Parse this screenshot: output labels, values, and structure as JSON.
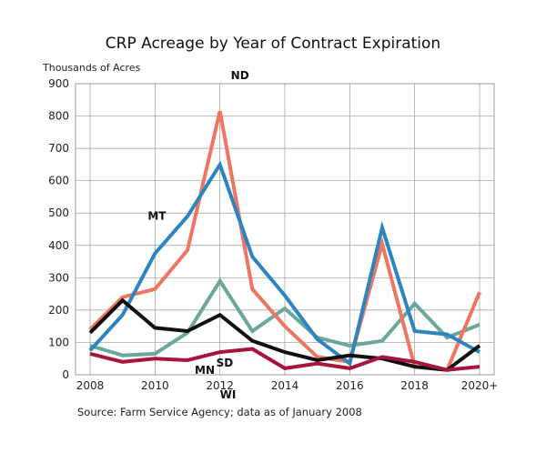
{
  "chart_data": {
    "type": "line",
    "title": "CRP Acreage by Year of Contract Expiration",
    "ylabel": "Thousands of Acres",
    "source": "Source: Farm Service Agency; data as of January 2008",
    "x": [
      2008,
      2009,
      2010,
      2011,
      2012,
      2013,
      2014,
      2015,
      2016,
      2017,
      2018,
      2019,
      2020
    ],
    "xticks": [
      "2008",
      "2010",
      "2012",
      "2014",
      "2016",
      "2018",
      "2020+"
    ],
    "yticks": [
      "0",
      "100",
      "200",
      "300",
      "400",
      "500",
      "600",
      "700",
      "800",
      "900"
    ],
    "ylim": [
      0,
      900
    ],
    "grid": true,
    "series": [
      {
        "name": "MN",
        "color": "#6aa69a",
        "values": [
          90,
          60,
          65,
          130,
          290,
          135,
          205,
          115,
          90,
          105,
          220,
          115,
          155
        ]
      },
      {
        "name": "ND",
        "color": "#ee7560",
        "values": [
          140,
          240,
          265,
          385,
          815,
          265,
          150,
          55,
          40,
          405,
          25,
          15,
          255
        ]
      },
      {
        "name": "MT",
        "color": "#2e84c0",
        "values": [
          75,
          185,
          375,
          490,
          650,
          365,
          245,
          110,
          35,
          455,
          135,
          125,
          70
        ]
      },
      {
        "name": "SD",
        "color": "#111111",
        "values": [
          130,
          230,
          145,
          135,
          185,
          105,
          70,
          45,
          60,
          50,
          25,
          15,
          90
        ]
      },
      {
        "name": "WI",
        "color": "#a8153a",
        "values": [
          65,
          40,
          50,
          45,
          70,
          80,
          20,
          35,
          20,
          55,
          40,
          15,
          25
        ]
      }
    ]
  }
}
